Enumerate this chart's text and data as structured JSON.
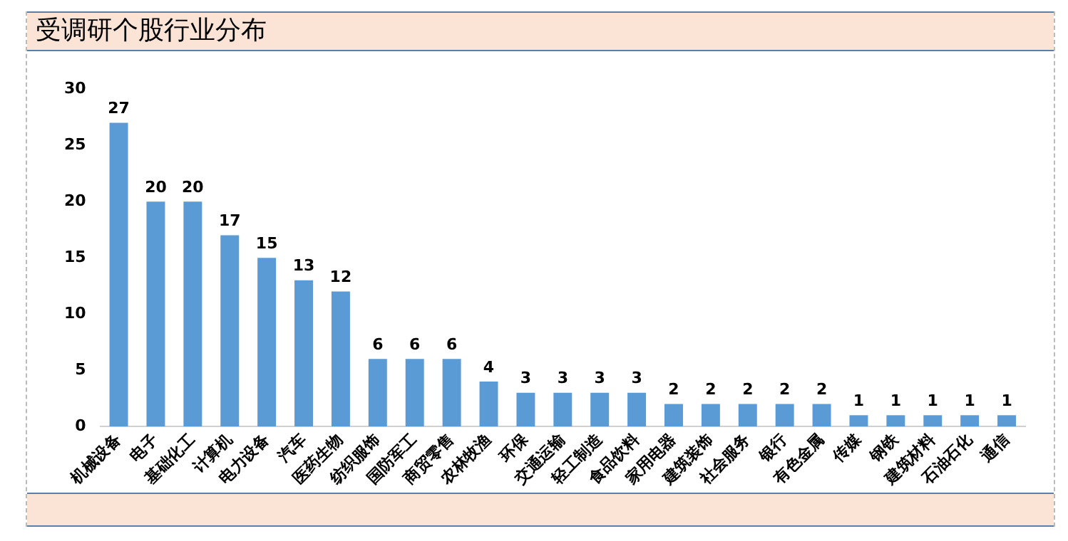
{
  "chart_data": {
    "type": "bar",
    "title": "受调研个股行业分布",
    "categories": [
      "机械设备",
      "电子",
      "基础化工",
      "计算机",
      "电力设备",
      "汽车",
      "医药生物",
      "纺织服饰",
      "国防军工",
      "商贸零售",
      "农林牧渔",
      "环保",
      "交通运输",
      "轻工制造",
      "食品饮料",
      "家用电器",
      "建筑装饰",
      "社会服务",
      "银行",
      "有色金属",
      "传媒",
      "钢铁",
      "建筑材料",
      "石油石化",
      "通信"
    ],
    "values": [
      27,
      20,
      20,
      17,
      15,
      13,
      12,
      6,
      6,
      6,
      4,
      3,
      3,
      3,
      3,
      2,
      2,
      2,
      2,
      2,
      1,
      1,
      1,
      1,
      1
    ],
    "color": "#5b9bd5",
    "ylim": [
      0,
      30
    ],
    "yticks": [
      0,
      5,
      10,
      15,
      20,
      25,
      30
    ],
    "grid": false,
    "data_labels": true
  }
}
